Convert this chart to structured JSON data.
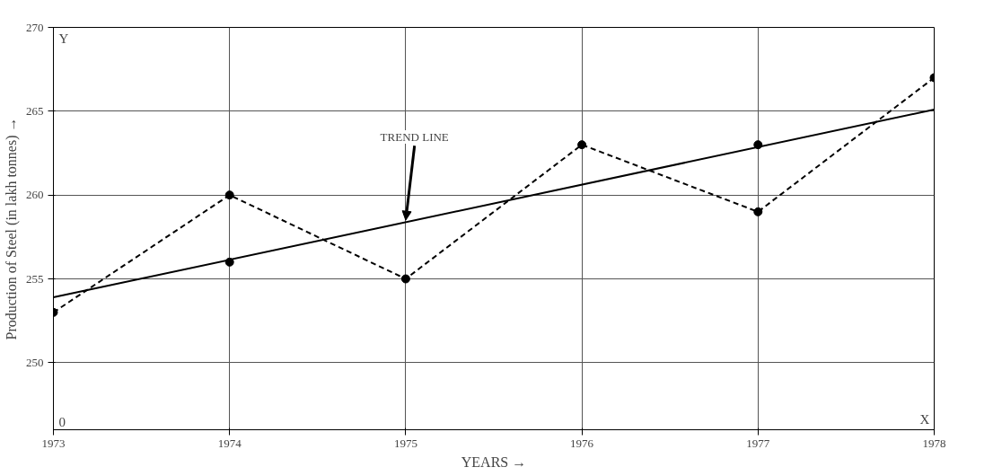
{
  "chart_data": {
    "type": "line",
    "xlabel": "YEARS →",
    "ylabel": "Production of Steel (in lakh tonnes) →",
    "x": [
      1973,
      1974,
      1975,
      1976,
      1977,
      1978
    ],
    "series": [
      {
        "color": "#000000",
        "values": [
          253,
          260,
          255,
          263,
          259,
          267
        ],
        "line_style": "dashed",
        "marker": "circle"
      },
      {
        "type": "line",
        "color": "#000000",
        "x": [
          1973,
          1978
        ],
        "values": [
          253.9,
          265.1
        ],
        "line_style": "solid",
        "marker": "none"
      },
      {
        "type": "scatter",
        "color": "#000000",
        "x": [
          1974,
          1977
        ],
        "values": [
          256,
          263
        ],
        "marker": "circle"
      }
    ],
    "xlim": [
      1973,
      1978
    ],
    "ylim": [
      246,
      270
    ],
    "xticks": [
      1973,
      1974,
      1975,
      1976,
      1977,
      1978
    ],
    "yticks": [
      250,
      255,
      260,
      265,
      270
    ],
    "grid": true,
    "annotations": [
      {
        "text": "TREND LINE",
        "x": 1975,
        "y": 258.5
      },
      "Y",
      "X",
      "0"
    ]
  }
}
